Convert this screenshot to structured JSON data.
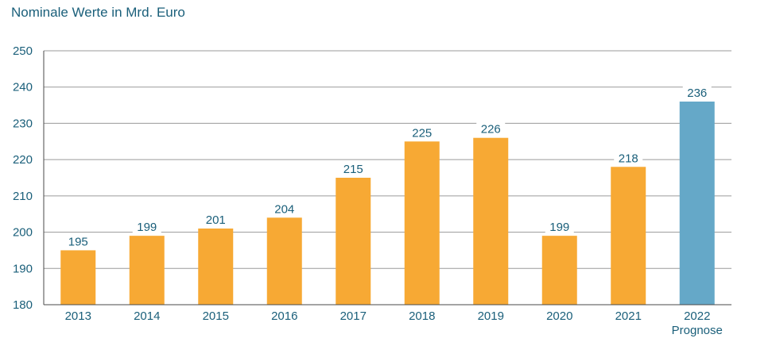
{
  "chart_data": {
    "type": "bar",
    "title": "Nominale Werte in Mrd. Euro",
    "xlabel": "",
    "ylabel": "",
    "categories": [
      "2013",
      "2014",
      "2015",
      "2016",
      "2017",
      "2018",
      "2019",
      "2020",
      "2021",
      "2022"
    ],
    "sublabels": [
      "",
      "",
      "",
      "",
      "",
      "",
      "",
      "",
      "",
      "Prognose"
    ],
    "values": [
      195,
      199,
      201,
      204,
      215,
      225,
      226,
      199,
      218,
      236
    ],
    "data_labels": [
      "195",
      "199",
      "201",
      "204",
      "215",
      "225",
      "226",
      "199",
      "218",
      "236"
    ],
    "ylim": [
      180,
      250
    ],
    "yticks": [
      180,
      190,
      200,
      210,
      220,
      230,
      240,
      250
    ],
    "grid": true,
    "colors": {
      "actual": "#f7a934",
      "forecast": "#65a8c8",
      "text": "#1a5f7a",
      "grid": "#9a9a9a"
    },
    "forecast_index": 9
  }
}
